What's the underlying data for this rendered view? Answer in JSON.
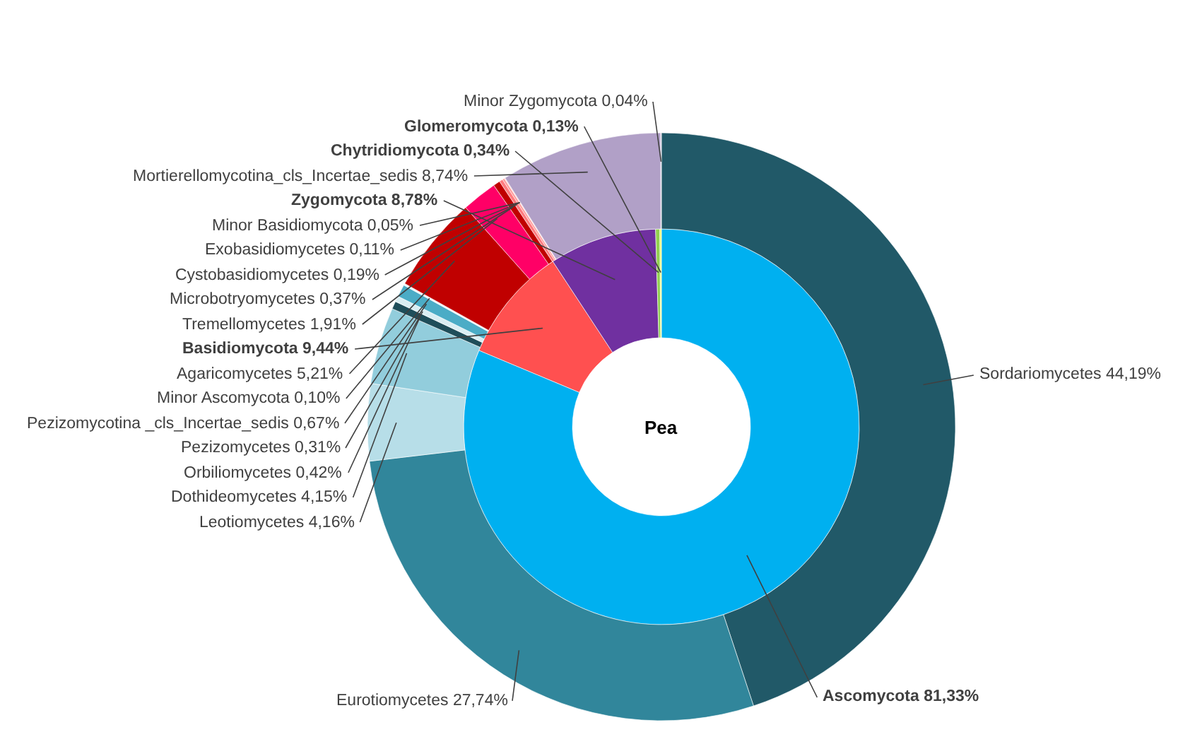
{
  "chart_data": {
    "type": "donut",
    "title": "Pea",
    "categories": [
      "Ascomycota",
      "Basidiomycota",
      "Zygomycota",
      "Chytridiomycota",
      "Glomeromycota",
      "Sordariomycetes",
      "Eurotiomycetes",
      "Leotiomycetes",
      "Dothideomycetes",
      "Orbiliomycetes",
      "Pezizomycetes",
      "Pezizomycotina _cls_Incertae_sedis",
      "Minor Ascomycota",
      "Agaricomycetes",
      "Tremellomycetes",
      "Microbotryomycetes",
      "Cystobasidiomycetes",
      "Exobasidiomycetes",
      "Minor Basidiomycota",
      "Mortierellomycotina_cls_Incertae_sedis",
      "Minor Zygomycota"
    ],
    "series": [
      {
        "values": [
          81.33,
          9.44,
          8.78,
          0.34,
          0.13,
          null,
          null,
          null,
          null,
          null,
          null,
          null,
          null,
          null,
          null,
          null,
          null,
          null,
          null,
          null,
          null
        ],
        "value_labels": [
          "81,33%",
          "9,44%",
          "8,78%",
          "0,34%",
          "0,13%",
          null,
          null,
          null,
          null,
          null,
          null,
          null,
          null,
          null,
          null,
          null,
          null,
          null,
          null,
          null,
          null
        ],
        "colors": [
          "#00b0f0",
          "#ff5050",
          "#7030a0",
          "#92d050",
          "#ffff66",
          null,
          null,
          null,
          null,
          null,
          null,
          null,
          null,
          null,
          null,
          null,
          null,
          null,
          null,
          null,
          null
        ]
      },
      {
        "values": [
          null,
          null,
          null,
          null,
          null,
          44.19,
          27.74,
          4.16,
          4.15,
          0.42,
          0.31,
          0.67,
          0.1,
          5.21,
          1.91,
          0.37,
          0.19,
          0.11,
          0.05,
          8.74,
          0.04
        ],
        "value_labels": [
          null,
          null,
          null,
          null,
          null,
          "44,19%",
          "27,74%",
          "4,16%",
          "4,15%",
          "0,42%",
          "0,31%",
          "0,67%",
          "0,10%",
          "5,21%",
          "1,91%",
          "0,37%",
          "0,19%",
          "0,11%",
          "0,05%",
          "8,74%",
          "0,04%"
        ],
        "colors": [
          null,
          null,
          null,
          null,
          null,
          "#215968",
          "#31869b",
          "#b7dee8",
          "#92cddc",
          "#1f4e5a",
          "#daeef3",
          "#4bacc6",
          "#eef7fa",
          "#c00000",
          "#ff0066",
          "#c00000",
          "#ff7c80",
          "#ff9999",
          "#ffcccc",
          "#b1a0c7",
          "#ccc0da"
        ]
      }
    ]
  }
}
